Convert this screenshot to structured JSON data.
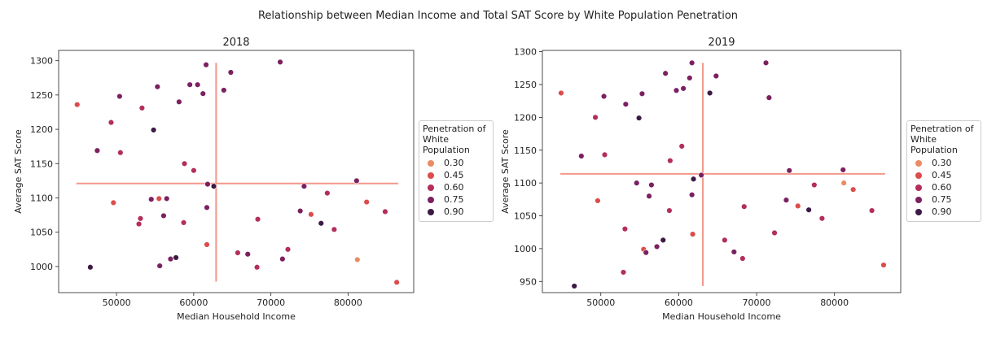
{
  "suptitle": "Relationship between Median Income and Total SAT Score by White Population Penetration",
  "legend": {
    "title": "Penetration of\nWhite\nPopulation",
    "entries": [
      {
        "label": "0.30",
        "color": "#eb8b65"
      },
      {
        "label": "0.45",
        "color": "#dc4c4c"
      },
      {
        "label": "0.60",
        "color": "#b32e5d"
      },
      {
        "label": "0.75",
        "color": "#7b2060"
      },
      {
        "label": "0.90",
        "color": "#3d1a45"
      }
    ]
  },
  "chart_data": [
    {
      "type": "scatter",
      "title": "2018",
      "xlabel": "Median Household Income",
      "ylabel": "Average SAT Score",
      "xlim": [
        42500,
        88500
      ],
      "ylim": [
        962,
        1315
      ],
      "xticks": [
        50000,
        60000,
        70000,
        80000
      ],
      "yticks": [
        1000,
        1050,
        1100,
        1150,
        1200,
        1250,
        1300
      ],
      "mean_x": 62900,
      "mean_y": 1121,
      "mean_x_line_range": [
        978,
        1297
      ],
      "mean_y_line_range": [
        44800,
        86500
      ],
      "points": [
        {
          "x": 44900,
          "y": 1236,
          "c": 0.45
        },
        {
          "x": 46600,
          "y": 999,
          "c": 0.9
        },
        {
          "x": 47500,
          "y": 1169,
          "c": 0.75
        },
        {
          "x": 49300,
          "y": 1210,
          "c": 0.6
        },
        {
          "x": 49600,
          "y": 1093,
          "c": 0.45
        },
        {
          "x": 50400,
          "y": 1248,
          "c": 0.75
        },
        {
          "x": 50500,
          "y": 1166,
          "c": 0.6
        },
        {
          "x": 52900,
          "y": 1062,
          "c": 0.6
        },
        {
          "x": 53100,
          "y": 1070,
          "c": 0.6
        },
        {
          "x": 53300,
          "y": 1231,
          "c": 0.6
        },
        {
          "x": 54500,
          "y": 1098,
          "c": 0.75
        },
        {
          "x": 54800,
          "y": 1199,
          "c": 0.9
        },
        {
          "x": 55300,
          "y": 1262,
          "c": 0.75
        },
        {
          "x": 55500,
          "y": 1099,
          "c": 0.45
        },
        {
          "x": 55600,
          "y": 1001,
          "c": 0.75
        },
        {
          "x": 56100,
          "y": 1074,
          "c": 0.75
        },
        {
          "x": 56500,
          "y": 1099,
          "c": 0.75
        },
        {
          "x": 57000,
          "y": 1011,
          "c": 0.75
        },
        {
          "x": 57700,
          "y": 1013,
          "c": 0.9
        },
        {
          "x": 58100,
          "y": 1240,
          "c": 0.75
        },
        {
          "x": 58700,
          "y": 1064,
          "c": 0.6
        },
        {
          "x": 58800,
          "y": 1150,
          "c": 0.6
        },
        {
          "x": 59500,
          "y": 1265,
          "c": 0.75
        },
        {
          "x": 60000,
          "y": 1140,
          "c": 0.6
        },
        {
          "x": 60500,
          "y": 1265,
          "c": 0.75
        },
        {
          "x": 61200,
          "y": 1252,
          "c": 0.75
        },
        {
          "x": 61600,
          "y": 1294,
          "c": 0.75
        },
        {
          "x": 61700,
          "y": 1086,
          "c": 0.75
        },
        {
          "x": 61700,
          "y": 1032,
          "c": 0.45
        },
        {
          "x": 61800,
          "y": 1120,
          "c": 0.75
        },
        {
          "x": 62600,
          "y": 1117,
          "c": 0.9
        },
        {
          "x": 63900,
          "y": 1257,
          "c": 0.75
        },
        {
          "x": 64800,
          "y": 1283,
          "c": 0.75
        },
        {
          "x": 65700,
          "y": 1020,
          "c": 0.6
        },
        {
          "x": 67000,
          "y": 1018,
          "c": 0.75
        },
        {
          "x": 68200,
          "y": 999,
          "c": 0.6
        },
        {
          "x": 68300,
          "y": 1069,
          "c": 0.6
        },
        {
          "x": 71200,
          "y": 1298,
          "c": 0.75
        },
        {
          "x": 71500,
          "y": 1011,
          "c": 0.75
        },
        {
          "x": 72200,
          "y": 1025,
          "c": 0.6
        },
        {
          "x": 73800,
          "y": 1081,
          "c": 0.75
        },
        {
          "x": 74300,
          "y": 1117,
          "c": 0.75
        },
        {
          "x": 75200,
          "y": 1076,
          "c": 0.45
        },
        {
          "x": 76500,
          "y": 1063,
          "c": 0.9
        },
        {
          "x": 77300,
          "y": 1107,
          "c": 0.6
        },
        {
          "x": 78200,
          "y": 1054,
          "c": 0.6
        },
        {
          "x": 81100,
          "y": 1125,
          "c": 0.75
        },
        {
          "x": 81200,
          "y": 1010,
          "c": 0.3
        },
        {
          "x": 82400,
          "y": 1094,
          "c": 0.45
        },
        {
          "x": 84800,
          "y": 1080,
          "c": 0.6
        },
        {
          "x": 86300,
          "y": 977,
          "c": 0.45
        }
      ]
    },
    {
      "type": "scatter",
      "title": "2019",
      "xlabel": "Median Household Income",
      "ylabel": "Average SAT Score",
      "xlim": [
        42500,
        88500
      ],
      "ylim": [
        933,
        1302
      ],
      "xticks": [
        50000,
        60000,
        70000,
        80000
      ],
      "yticks": [
        950,
        1000,
        1050,
        1100,
        1150,
        1200,
        1250,
        1300
      ],
      "mean_x": 63100,
      "mean_y": 1114,
      "mean_x_line_range": [
        943,
        1283
      ],
      "mean_y_line_range": [
        44800,
        86500
      ],
      "points": [
        {
          "x": 44900,
          "y": 1237,
          "c": 0.45
        },
        {
          "x": 46600,
          "y": 943,
          "c": 0.9
        },
        {
          "x": 47500,
          "y": 1141,
          "c": 0.75
        },
        {
          "x": 49300,
          "y": 1200,
          "c": 0.6
        },
        {
          "x": 49600,
          "y": 1073,
          "c": 0.45
        },
        {
          "x": 50400,
          "y": 1232,
          "c": 0.75
        },
        {
          "x": 50500,
          "y": 1143,
          "c": 0.6
        },
        {
          "x": 52900,
          "y": 964,
          "c": 0.6
        },
        {
          "x": 53100,
          "y": 1030,
          "c": 0.6
        },
        {
          "x": 53200,
          "y": 1220,
          "c": 0.75
        },
        {
          "x": 54600,
          "y": 1100,
          "c": 0.75
        },
        {
          "x": 54900,
          "y": 1199,
          "c": 0.9
        },
        {
          "x": 55300,
          "y": 1236,
          "c": 0.75
        },
        {
          "x": 55500,
          "y": 999,
          "c": 0.45
        },
        {
          "x": 55800,
          "y": 994,
          "c": 0.75
        },
        {
          "x": 56200,
          "y": 1080,
          "c": 0.75
        },
        {
          "x": 56500,
          "y": 1097,
          "c": 0.75
        },
        {
          "x": 57200,
          "y": 1003,
          "c": 0.75
        },
        {
          "x": 58000,
          "y": 1013,
          "c": 0.9
        },
        {
          "x": 58300,
          "y": 1267,
          "c": 0.75
        },
        {
          "x": 58800,
          "y": 1058,
          "c": 0.6
        },
        {
          "x": 58900,
          "y": 1134,
          "c": 0.6
        },
        {
          "x": 59700,
          "y": 1241,
          "c": 0.75
        },
        {
          "x": 60400,
          "y": 1156,
          "c": 0.6
        },
        {
          "x": 60600,
          "y": 1244,
          "c": 0.75
        },
        {
          "x": 61400,
          "y": 1260,
          "c": 0.75
        },
        {
          "x": 61700,
          "y": 1283,
          "c": 0.75
        },
        {
          "x": 61700,
          "y": 1082,
          "c": 0.75
        },
        {
          "x": 61800,
          "y": 1022,
          "c": 0.45
        },
        {
          "x": 61900,
          "y": 1106,
          "c": 0.9
        },
        {
          "x": 62900,
          "y": 1112,
          "c": 0.75
        },
        {
          "x": 64000,
          "y": 1237,
          "c": 0.9
        },
        {
          "x": 64800,
          "y": 1263,
          "c": 0.75
        },
        {
          "x": 65900,
          "y": 1013,
          "c": 0.6
        },
        {
          "x": 67100,
          "y": 995,
          "c": 0.75
        },
        {
          "x": 68200,
          "y": 985,
          "c": 0.6
        },
        {
          "x": 68400,
          "y": 1064,
          "c": 0.6
        },
        {
          "x": 71200,
          "y": 1283,
          "c": 0.75
        },
        {
          "x": 71600,
          "y": 1230,
          "c": 0.75
        },
        {
          "x": 72300,
          "y": 1024,
          "c": 0.6
        },
        {
          "x": 73800,
          "y": 1074,
          "c": 0.75
        },
        {
          "x": 74200,
          "y": 1119,
          "c": 0.75
        },
        {
          "x": 75300,
          "y": 1065,
          "c": 0.45
        },
        {
          "x": 76700,
          "y": 1059,
          "c": 0.9
        },
        {
          "x": 77400,
          "y": 1097,
          "c": 0.6
        },
        {
          "x": 78400,
          "y": 1046,
          "c": 0.6
        },
        {
          "x": 81100,
          "y": 1120,
          "c": 0.75
        },
        {
          "x": 81200,
          "y": 1100,
          "c": 0.3
        },
        {
          "x": 82400,
          "y": 1090,
          "c": 0.45
        },
        {
          "x": 84800,
          "y": 1058,
          "c": 0.6
        },
        {
          "x": 86300,
          "y": 975,
          "c": 0.45
        }
      ]
    }
  ]
}
